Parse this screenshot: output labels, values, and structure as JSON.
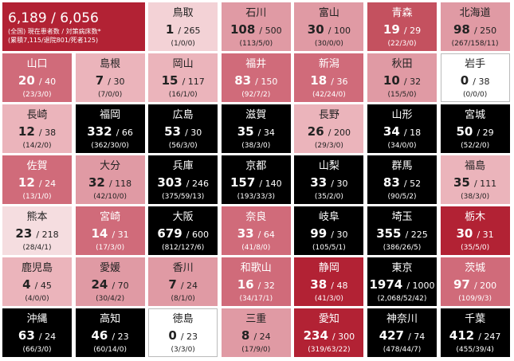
{
  "header": {
    "total": "6,189 / 6,056",
    "caption": "(全国) 現在患者数 / 対策病床数*",
    "detail": "(累積7,115/退院801/死者125)",
    "color": "#b22234"
  },
  "tiles": [
    {
      "name": "鳥取",
      "cases": 1,
      "beds": "/ 265",
      "breakdown": "(1/0/0)",
      "color": "#f3d2d6"
    },
    {
      "name": "石川",
      "cases": 108,
      "beds": "/ 500",
      "breakdown": "(113/5/0)",
      "color": "#e09aa4"
    },
    {
      "name": "富山",
      "cases": 30,
      "beds": "/ 100",
      "breakdown": "(30/0/0)",
      "color": "#e09aa4"
    },
    {
      "name": "青森",
      "cases": 19,
      "beds": "/ 29",
      "breakdown": "(22/3/0)",
      "color": "#c4515f"
    },
    {
      "name": "北海道",
      "cases": 98,
      "beds": "/ 250",
      "breakdown": "(267/158/11)",
      "color": "#e09aa4"
    },
    {
      "name": "山口",
      "cases": 20,
      "beds": "/ 40",
      "breakdown": "(23/3/0)",
      "color": "#d06b7a"
    },
    {
      "name": "島根",
      "cases": 7,
      "beds": "/ 30",
      "breakdown": "(7/0/0)",
      "color": "#ebb4bb"
    },
    {
      "name": "岡山",
      "cases": 15,
      "beds": "/ 117",
      "breakdown": "(16/1/0)",
      "color": "#ebb4bb"
    },
    {
      "name": "福井",
      "cases": 83,
      "beds": "/ 150",
      "breakdown": "(92/7/2)",
      "color": "#d06b7a"
    },
    {
      "name": "新潟",
      "cases": 18,
      "beds": "/ 36",
      "breakdown": "(42/24/0)",
      "color": "#d06b7a"
    },
    {
      "name": "秋田",
      "cases": 10,
      "beds": "/ 32",
      "breakdown": "(15/5/0)",
      "color": "#e09aa4"
    },
    {
      "name": "岩手",
      "cases": 0,
      "beds": "/ 38",
      "breakdown": "(0/0/0)",
      "color": "#ffffff"
    },
    {
      "name": "長崎",
      "cases": 12,
      "beds": "/ 38",
      "breakdown": "(14/2/0)",
      "color": "#ebb4bb"
    },
    {
      "name": "福岡",
      "cases": 332,
      "beds": "/ 66",
      "breakdown": "(362/30/0)",
      "color": "#000000"
    },
    {
      "name": "広島",
      "cases": 53,
      "beds": "/ 30",
      "breakdown": "(56/3/0)",
      "color": "#000000"
    },
    {
      "name": "滋賀",
      "cases": 35,
      "beds": "/ 34",
      "breakdown": "(38/3/0)",
      "color": "#000000"
    },
    {
      "name": "長野",
      "cases": 26,
      "beds": "/ 200",
      "breakdown": "(29/3/0)",
      "color": "#ebb4bb"
    },
    {
      "name": "山形",
      "cases": 34,
      "beds": "/ 18",
      "breakdown": "(34/0/0)",
      "color": "#000000"
    },
    {
      "name": "宮城",
      "cases": 50,
      "beds": "/ 29",
      "breakdown": "(52/2/0)",
      "color": "#000000"
    },
    {
      "name": "佐賀",
      "cases": 12,
      "beds": "/ 24",
      "breakdown": "(13/1/0)",
      "color": "#d06b7a"
    },
    {
      "name": "大分",
      "cases": 32,
      "beds": "/ 118",
      "breakdown": "(42/10/0)",
      "color": "#e09aa4"
    },
    {
      "name": "兵庫",
      "cases": 303,
      "beds": "/ 246",
      "breakdown": "(375/59/13)",
      "color": "#000000"
    },
    {
      "name": "京都",
      "cases": 157,
      "beds": "/ 140",
      "breakdown": "(193/33/3)",
      "color": "#000000"
    },
    {
      "name": "山梨",
      "cases": 33,
      "beds": "/ 30",
      "breakdown": "(35/2/0)",
      "color": "#000000"
    },
    {
      "name": "群馬",
      "cases": 83,
      "beds": "/ 52",
      "breakdown": "(90/5/2)",
      "color": "#000000"
    },
    {
      "name": "福島",
      "cases": 35,
      "beds": "/ 111",
      "breakdown": "(38/3/0)",
      "color": "#ebb4bb"
    },
    {
      "name": "熊本",
      "cases": 23,
      "beds": "/ 218",
      "breakdown": "(28/4/1)",
      "color": "#f5dde0"
    },
    {
      "name": "宮崎",
      "cases": 14,
      "beds": "/ 31",
      "breakdown": "(17/3/0)",
      "color": "#d06b7a"
    },
    {
      "name": "大阪",
      "cases": 679,
      "beds": "/ 600",
      "breakdown": "(812/127/6)",
      "color": "#000000"
    },
    {
      "name": "奈良",
      "cases": 33,
      "beds": "/ 64",
      "breakdown": "(41/8/0)",
      "color": "#d06b7a"
    },
    {
      "name": "岐阜",
      "cases": 99,
      "beds": "/ 30",
      "breakdown": "(105/5/1)",
      "color": "#000000"
    },
    {
      "name": "埼玉",
      "cases": 355,
      "beds": "/ 225",
      "breakdown": "(386/26/5)",
      "color": "#000000"
    },
    {
      "name": "栃木",
      "cases": 30,
      "beds": "/ 31",
      "breakdown": "(35/5/0)",
      "color": "#b22234"
    },
    {
      "name": "鹿児島",
      "cases": 4,
      "beds": "/ 45",
      "breakdown": "(4/0/0)",
      "color": "#ebb4bb"
    },
    {
      "name": "愛媛",
      "cases": 24,
      "beds": "/ 70",
      "breakdown": "(30/4/2)",
      "color": "#e09aa4"
    },
    {
      "name": "香川",
      "cases": 7,
      "beds": "/ 24",
      "breakdown": "(8/1/0)",
      "color": "#e09aa4"
    },
    {
      "name": "和歌山",
      "cases": 16,
      "beds": "/ 32",
      "breakdown": "(34/17/1)",
      "color": "#d06b7a"
    },
    {
      "name": "静岡",
      "cases": 38,
      "beds": "/ 48",
      "breakdown": "(41/3/0)",
      "color": "#b22234"
    },
    {
      "name": "東京",
      "cases": 1974,
      "beds": "/ 1000",
      "breakdown": "(2,068/52/42)",
      "color": "#000000"
    },
    {
      "name": "茨城",
      "cases": 97,
      "beds": "/ 200",
      "breakdown": "(109/9/3)",
      "color": "#d06b7a"
    },
    {
      "name": "沖縄",
      "cases": 63,
      "beds": "/ 24",
      "breakdown": "(66/3/0)",
      "color": "#000000"
    },
    {
      "name": "高知",
      "cases": 46,
      "beds": "/ 23",
      "breakdown": "(60/14/0)",
      "color": "#000000"
    },
    {
      "name": "徳島",
      "cases": 0,
      "beds": "/ 23",
      "breakdown": "(3/3/0)",
      "color": "#ffffff"
    },
    {
      "name": "三重",
      "cases": 8,
      "beds": "/ 24",
      "breakdown": "(17/9/0)",
      "color": "#e09aa4"
    },
    {
      "name": "愛知",
      "cases": 234,
      "beds": "/ 300",
      "breakdown": "(319/63/22)",
      "color": "#b22234"
    },
    {
      "name": "神奈川",
      "cases": 427,
      "beds": "/ 74",
      "breakdown": "(478/44/7)",
      "color": "#000000"
    },
    {
      "name": "千葉",
      "cases": 412,
      "beds": "/ 247",
      "breakdown": "(455/39/4)",
      "color": "#000000"
    }
  ]
}
